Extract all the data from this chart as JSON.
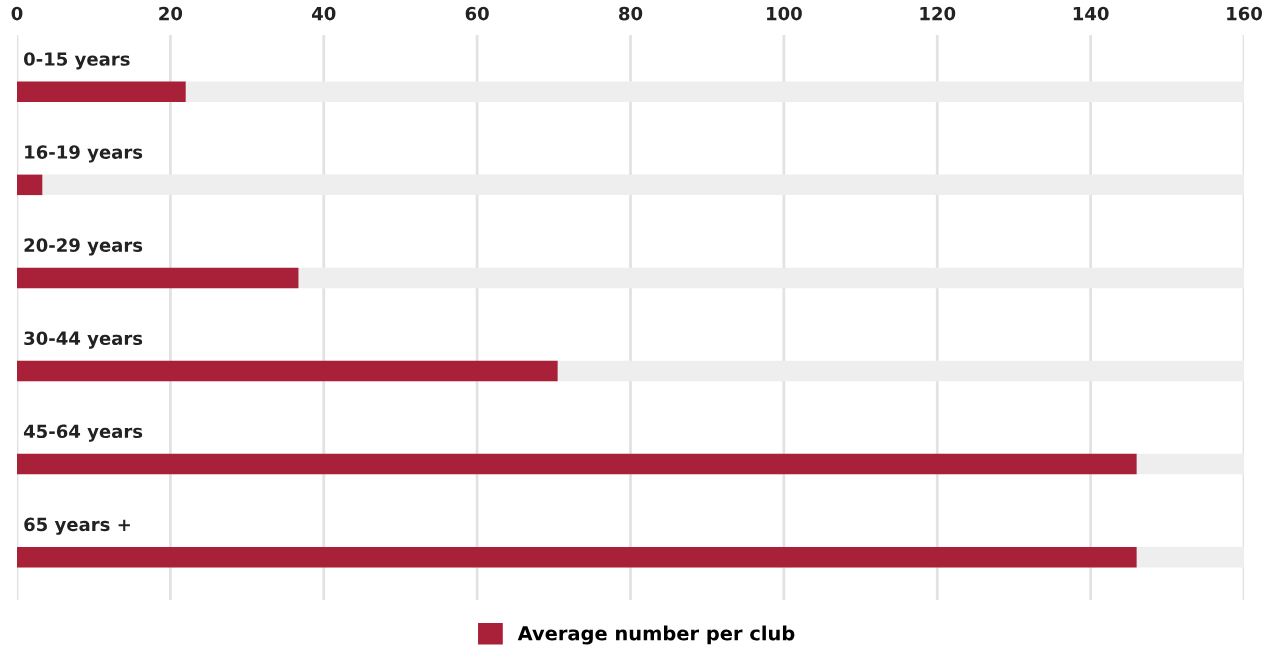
{
  "chart_data": {
    "type": "bar",
    "orientation": "horizontal",
    "categories": [
      "0-15 years",
      "16-19 years",
      "20-29 years",
      "30-44 years",
      "45-64 years",
      "65 years +"
    ],
    "series": [
      {
        "name": "Average number per club",
        "color": "#a82138",
        "values": [
          22,
          3.3,
          36.7,
          70.5,
          146,
          146
        ]
      }
    ],
    "xlim": [
      0,
      160
    ],
    "xticks": [
      0,
      20,
      40,
      60,
      80,
      100,
      120,
      140,
      160
    ],
    "grid": "x",
    "legend": "bottom"
  }
}
